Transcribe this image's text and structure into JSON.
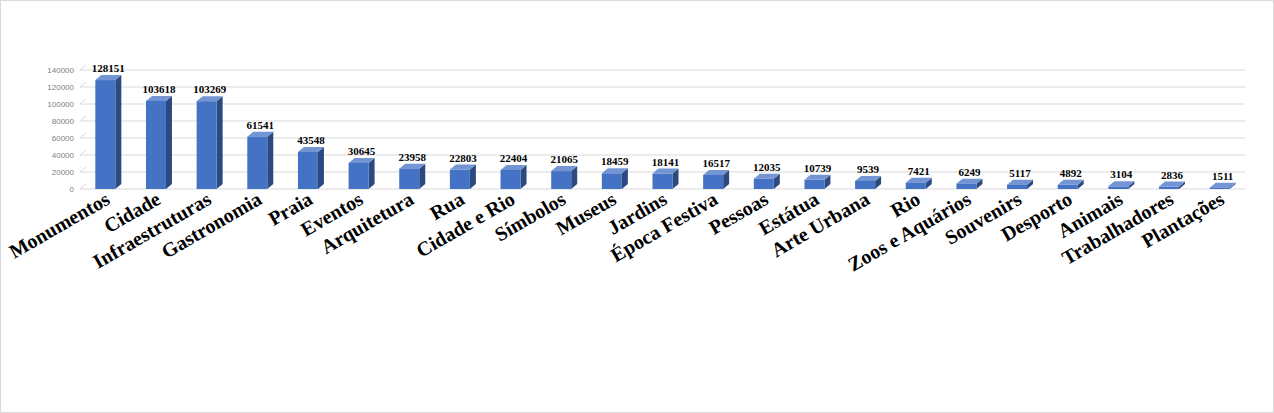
{
  "chart_data": {
    "type": "bar",
    "categories": [
      "Monumentos",
      "Cidade",
      "Infraestruturas",
      "Gastronomia",
      "Praia",
      "Eventos",
      "Arquitetura",
      "Rua",
      "Cidade e Rio",
      "Símbolos",
      "Museus",
      "Jardins",
      "Época Festiva",
      "Pessoas",
      "Estátua",
      "Arte Urbana",
      "Rio",
      "Zoos e Aquários",
      "Souvenirs",
      "Desporto",
      "Animais",
      "Trabalhadores",
      "Plantações"
    ],
    "values": [
      128151,
      103618,
      103269,
      61541,
      43548,
      30645,
      23958,
      22803,
      22404,
      21065,
      18459,
      18141,
      16517,
      12035,
      10739,
      9539,
      7421,
      6249,
      5117,
      4892,
      3104,
      2836,
      1511
    ],
    "color": "#4472c4",
    "ylim": [
      0,
      140000
    ],
    "yticks": [
      0,
      20000,
      40000,
      60000,
      80000,
      100000,
      120000,
      140000
    ],
    "grid": true,
    "data_labels": true
  }
}
